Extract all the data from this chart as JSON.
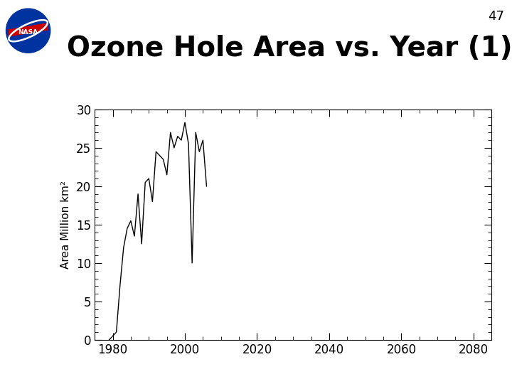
{
  "title": "Ozone Hole Area vs. Year (1)",
  "ylabel": "Area Million km²",
  "xlim": [
    1975,
    2085
  ],
  "ylim": [
    0,
    30
  ],
  "xticks": [
    1980,
    2000,
    2020,
    2040,
    2060,
    2080
  ],
  "yticks": [
    0,
    5,
    10,
    15,
    20,
    25,
    30
  ],
  "slide_number": "47",
  "line_color": "#000000",
  "bg_color": "#ffffff",
  "years": [
    1979,
    1980,
    1981,
    1982,
    1983,
    1984,
    1985,
    1986,
    1987,
    1988,
    1989,
    1990,
    1991,
    1992,
    1993,
    1994,
    1995,
    1996,
    1997,
    1998,
    1999,
    2000,
    2001,
    2002,
    2003,
    2004,
    2005,
    2006
  ],
  "areas": [
    0.0,
    0.5,
    1.0,
    7.0,
    12.0,
    14.5,
    15.5,
    13.5,
    19.0,
    12.5,
    20.5,
    21.0,
    18.0,
    24.5,
    24.0,
    23.5,
    21.5,
    27.0,
    25.0,
    26.5,
    26.0,
    28.3,
    25.5,
    10.0,
    27.0,
    24.5,
    26.0,
    20.0
  ],
  "title_fontsize": 28,
  "tick_labelsize": 12,
  "ylabel_fontsize": 11
}
